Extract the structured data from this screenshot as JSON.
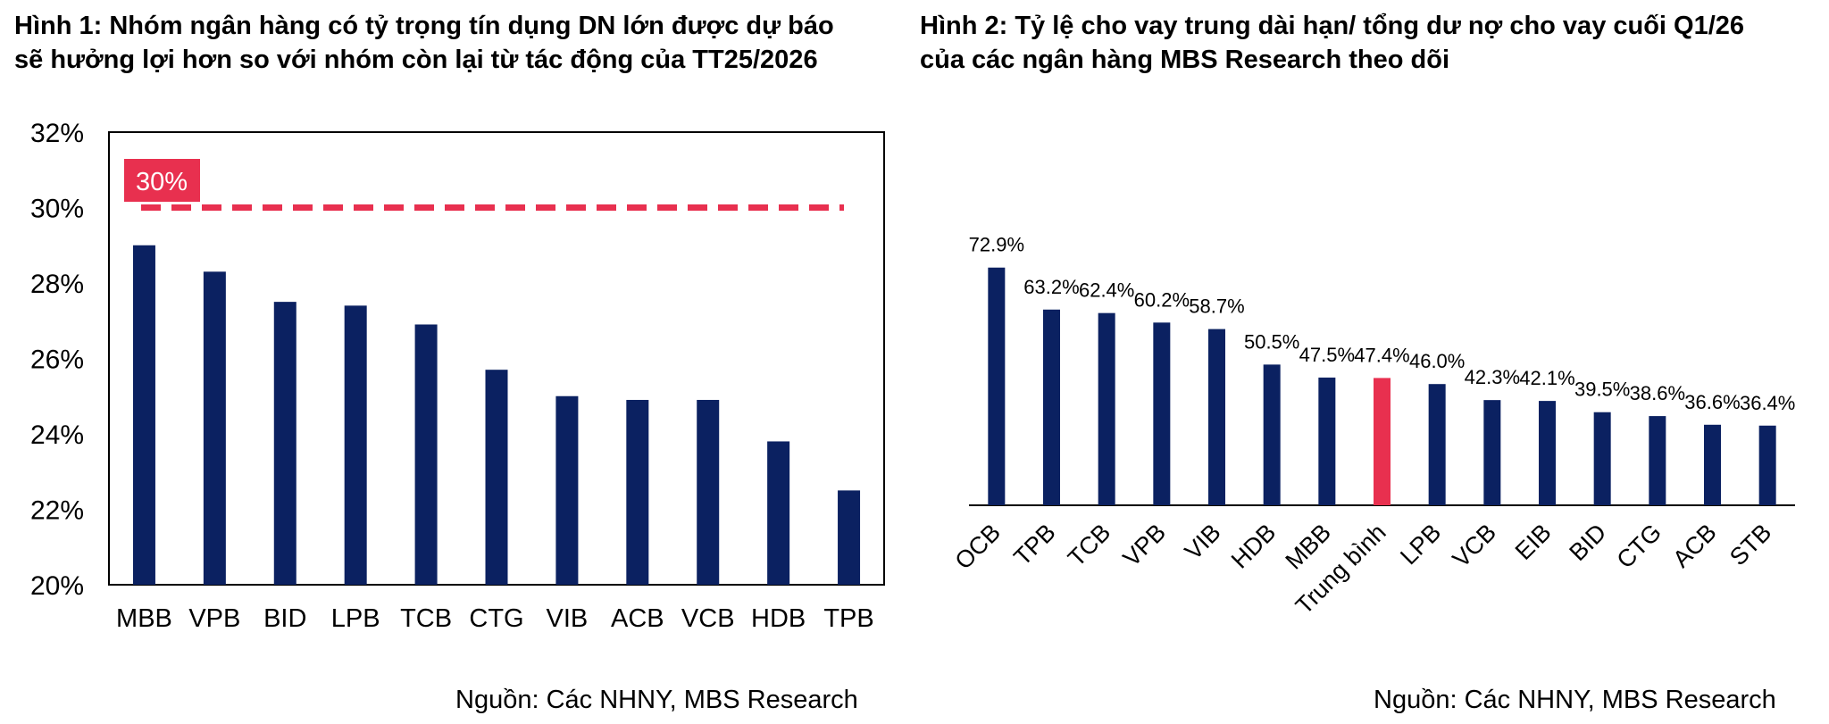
{
  "colors": {
    "bar": "#0b2161",
    "highlight": "#e8304f",
    "axis": "#000000"
  },
  "fig1": {
    "title_line1": "Hình 1: Nhóm ngân hàng có tỷ trọng tín dụng DN lớn được dự báo",
    "title_line2": "sẽ hưởng lợi hơn so với nhóm còn lại từ tác động của TT25/2026",
    "source": "Nguồn: Các NHNY, MBS Research"
  },
  "fig2": {
    "title_line1": "Hình 2: Tỷ lệ cho vay trung dài hạn/ tổng dư nợ cho vay cuối Q1/26",
    "title_line2": "của các ngân hàng MBS Research theo dõi",
    "source": "Nguồn: Các NHNY, MBS Research"
  },
  "chart_data": [
    {
      "type": "bar",
      "categories": [
        "MBB",
        "VPB",
        "BID",
        "LPB",
        "TCB",
        "CTG",
        "VIB",
        "ACB",
        "VCB",
        "HDB",
        "TPB"
      ],
      "values": [
        29.0,
        28.3,
        27.5,
        27.4,
        26.9,
        25.7,
        25.0,
        24.9,
        24.9,
        23.8,
        22.5
      ],
      "ylim": [
        20,
        32
      ],
      "yticks": [
        "20%",
        "22%",
        "24%",
        "26%",
        "28%",
        "30%",
        "32%"
      ],
      "threshold": {
        "value": 30,
        "label": "30%"
      }
    },
    {
      "type": "bar",
      "categories": [
        "OCB",
        "TPB",
        "TCB",
        "VPB",
        "VIB",
        "HDB",
        "MBB",
        "Trung bình",
        "LPB",
        "VCB",
        "EIB",
        "BID",
        "CTG",
        "ACB",
        "STB"
      ],
      "values": [
        72.9,
        63.2,
        62.4,
        60.2,
        58.7,
        50.5,
        47.5,
        47.4,
        46.0,
        42.3,
        42.1,
        39.5,
        38.6,
        36.6,
        36.4
      ],
      "labels": [
        "72.9%",
        "63.2%",
        "62.4%",
        "60.2%",
        "58.7%",
        "50.5%",
        "47.5%",
        "47.4%",
        "46.0%",
        "42.3%",
        "42.1%",
        "39.5%",
        "38.6%",
        "36.6%",
        "36.4%"
      ],
      "highlight_index": 7
    }
  ]
}
